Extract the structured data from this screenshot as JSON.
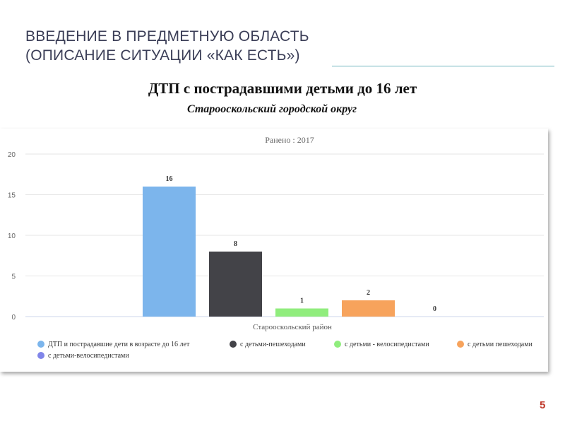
{
  "slide": {
    "title_line1": "ВВЕДЕНИЕ В ПРЕДМЕТНУЮ ОБЛАСТЬ",
    "title_line2": "(ОПИСАНИЕ СИТУАЦИИ «КАК ЕСТЬ»)",
    "heading": "ДТП с пострадавшими детьми до 16 лет",
    "subheading": "Старооскольский городской округ",
    "page_number": "5",
    "accent_color": "#6fb6bf",
    "page_number_color": "#c0392b"
  },
  "chart_data": {
    "type": "bar",
    "title": "Ранено : 2017",
    "categories": [
      "Старооскольский район"
    ],
    "xlabel": "Старооскольский район",
    "ylabel": "",
    "ylim": [
      0,
      20
    ],
    "yticks": [
      0,
      5,
      10,
      15,
      20
    ],
    "grid": true,
    "legend_position": "bottom",
    "series": [
      {
        "name": "ДТП и пострадавшие дети в возрасте до 16 лет",
        "values": [
          16
        ],
        "color": "#7cb5ec"
      },
      {
        "name": "с детьми-пешеходами",
        "values": [
          8
        ],
        "color": "#434348"
      },
      {
        "name": "с детьми - велосипедистами",
        "values": [
          1
        ],
        "color": "#90ed7d"
      },
      {
        "name": "с детьми пешеходами",
        "values": [
          2
        ],
        "color": "#f7a35c"
      },
      {
        "name": "с детьми-велосипедистами",
        "values": [
          0
        ],
        "color": "#8085e9"
      }
    ]
  }
}
